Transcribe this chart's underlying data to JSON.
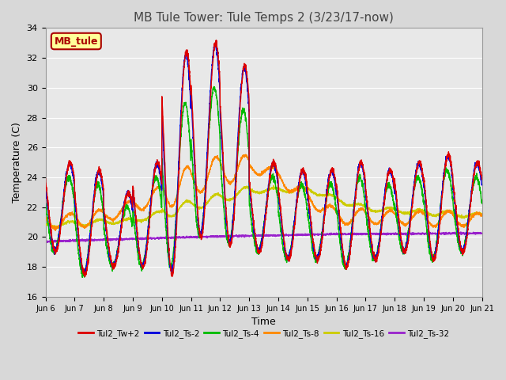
{
  "title": "MB Tule Tower: Tule Temps 2 (3/23/17-now)",
  "xlabel": "Time",
  "ylabel": "Temperature (C)",
  "ylim": [
    16,
    34
  ],
  "xlim": [
    0,
    15
  ],
  "yticks": [
    16,
    18,
    20,
    22,
    24,
    26,
    28,
    30,
    32,
    34
  ],
  "xtick_labels": [
    "Jun 6",
    "Jun 7",
    "Jun 8",
    "Jun 9",
    "Jun 10",
    "Jun 11",
    "Jun 12",
    "Jun 13",
    "Jun 14",
    "Jun 15",
    "Jun 16",
    "Jun 17",
    "Jun 18",
    "Jun 19",
    "Jun 20",
    "Jun 21"
  ],
  "legend_labels": [
    "Tul2_Tw+2",
    "Tul2_Ts-2",
    "Tul2_Ts-4",
    "Tul2_Ts-8",
    "Tul2_Ts-16",
    "Tul2_Ts-32"
  ],
  "colors": [
    "#dd0000",
    "#0000dd",
    "#00bb00",
    "#ff8800",
    "#cccc00",
    "#9922cc"
  ],
  "bg_color": "#d8d8d8",
  "plot_bg_color": "#e8e8e8",
  "annotation_text": "MB_tule",
  "annotation_bg": "#ffff99",
  "annotation_border": "#aa0000",
  "grid_color": "#ffffff",
  "title_fontsize": 11,
  "axis_fontsize": 9,
  "tick_fontsize": 8
}
